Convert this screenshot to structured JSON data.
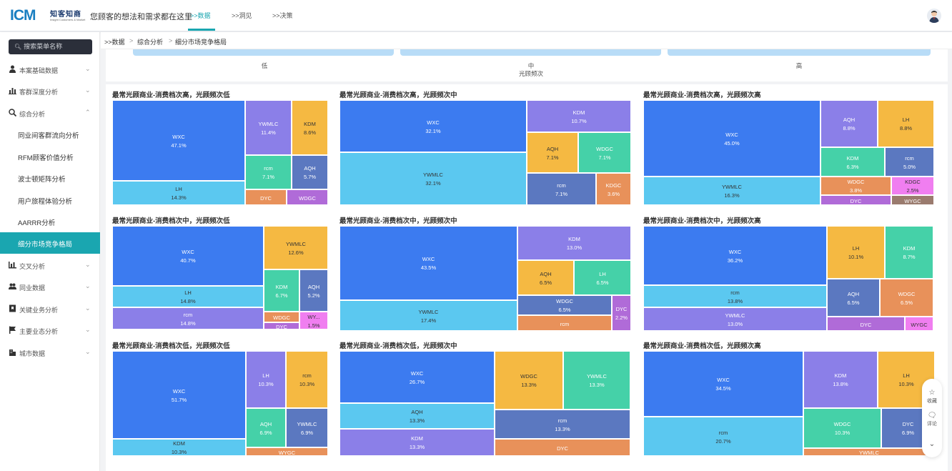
{
  "header": {
    "logo_mark": "ICM",
    "logo_cn": "知客知商",
    "logo_en": "Insight Customers & Market",
    "slogan": "您顾客的想法和需求都在这里",
    "nav": [
      {
        "label": ">>数据",
        "active": true
      },
      {
        "label": ">>洞见",
        "active": false
      },
      {
        "label": ">>决策",
        "active": false
      }
    ]
  },
  "sidebar": {
    "search_placeholder": "搜索菜单名称",
    "items": [
      {
        "label": "本案基础数据",
        "icon": "user-icon",
        "chevron": "⌄"
      },
      {
        "label": "客群深度分析",
        "icon": "bar-chart-icon",
        "chevron": "⌄"
      },
      {
        "label": "综合分析",
        "icon": "magnifier-chart-icon",
        "chevron": "⌃",
        "expanded": true
      },
      {
        "label": "交叉分析",
        "icon": "cross-analysis-icon",
        "chevron": "⌄"
      },
      {
        "label": "同业数据",
        "icon": "group-icon",
        "chevron": "⌄"
      },
      {
        "label": "关键业务分析",
        "icon": "flag-book-icon",
        "chevron": "⌄"
      },
      {
        "label": "主要业态分析",
        "icon": "flag-icon",
        "chevron": "⌄"
      },
      {
        "label": "城市数据",
        "icon": "building-icon",
        "chevron": "⌄"
      }
    ],
    "sub_items": [
      {
        "label": "同业间客群流向分析",
        "active": false
      },
      {
        "label": "RFM顾客价值分析",
        "active": false
      },
      {
        "label": "波士顿矩阵分析",
        "active": false
      },
      {
        "label": "用户旅程体验分析",
        "active": false
      },
      {
        "label": "AARRR分析",
        "active": false
      },
      {
        "label": "细分市场竞争格局",
        "active": true
      }
    ]
  },
  "breadcrumb": [
    ">>数据",
    "综合分析",
    "细分市场竞争格局"
  ],
  "top_strip": {
    "labels": [
      "低",
      "中",
      "高"
    ],
    "axis_title": "光顾频次"
  },
  "charts": [
    {
      "title": "最常光顾商业-消费档次高，光顾频次低",
      "cells": [
        {
          "name": "WXC",
          "value": "47.1%",
          "color": "#3c7bf0"
        },
        {
          "name": "LH",
          "value": "14.3%",
          "color": "#5bc8f0",
          "dark": true
        },
        {
          "name": "YWMLC",
          "value": "11.4%",
          "color": "#8b7fe8"
        },
        {
          "name": "KDM",
          "value": "8.6%",
          "color": "#f5b942",
          "dark": true
        },
        {
          "name": "rcm",
          "value": "7.1%",
          "color": "#45d1a8"
        },
        {
          "name": "AQH",
          "value": "5.7%",
          "color": "#5b78c0"
        },
        {
          "name": "DYC",
          "value": "",
          "color": "#e8915a"
        },
        {
          "name": "WDGC",
          "value": "",
          "color": "#b06bd8"
        }
      ]
    },
    {
      "title": "最常光顾商业-消费档次高，光顾频次中",
      "cells": [
        {
          "name": "WXC",
          "value": "32.1%",
          "color": "#3c7bf0"
        },
        {
          "name": "YWMLC",
          "value": "32.1%",
          "color": "#5bc8f0",
          "dark": true
        },
        {
          "name": "KDM",
          "value": "10.7%",
          "color": "#8b7fe8"
        },
        {
          "name": "AQH",
          "value": "7.1%",
          "color": "#f5b942",
          "dark": true
        },
        {
          "name": "WDGC",
          "value": "7.1%",
          "color": "#45d1a8"
        },
        {
          "name": "rcm",
          "value": "7.1%",
          "color": "#5b78c0"
        },
        {
          "name": "KDGC",
          "value": "3.6%",
          "color": "#e8915a"
        }
      ]
    },
    {
      "title": "最常光顾商业-消费档次高，光顾频次高",
      "cells": [
        {
          "name": "WXC",
          "value": "45.0%",
          "color": "#3c7bf0"
        },
        {
          "name": "YWMLC",
          "value": "16.3%",
          "color": "#5bc8f0",
          "dark": true
        },
        {
          "name": "AQH",
          "value": "8.8%",
          "color": "#8b7fe8"
        },
        {
          "name": "LH",
          "value": "8.8%",
          "color": "#f5b942",
          "dark": true
        },
        {
          "name": "KDM",
          "value": "6.3%",
          "color": "#45d1a8"
        },
        {
          "name": "rcm",
          "value": "5.0%",
          "color": "#5b78c0"
        },
        {
          "name": "WDGC",
          "value": "3.8%",
          "color": "#e8915a"
        },
        {
          "name": "KDGC",
          "value": "2.5%",
          "color": "#f07ef0",
          "dark": true
        },
        {
          "name": "DYC",
          "value": "",
          "color": "#b06bd8"
        },
        {
          "name": "WYGC",
          "value": "",
          "color": "#9a7b6e"
        }
      ]
    },
    {
      "title": "最常光顾商业-消费档次中，光顾频次低",
      "cells": [
        {
          "name": "WXC",
          "value": "40.7%",
          "color": "#3c7bf0"
        },
        {
          "name": "LH",
          "value": "14.8%",
          "color": "#5bc8f0",
          "dark": true
        },
        {
          "name": "rcm",
          "value": "14.8%",
          "color": "#8b7fe8"
        },
        {
          "name": "YWMLC",
          "value": "12.6%",
          "color": "#f5b942",
          "dark": true
        },
        {
          "name": "KDM",
          "value": "6.7%",
          "color": "#45d1a8"
        },
        {
          "name": "AQH",
          "value": "5.2%",
          "color": "#5b78c0"
        },
        {
          "name": "WDGC",
          "value": "",
          "color": "#e8915a"
        },
        {
          "name": "WY...",
          "value": "1.5%",
          "color": "#f07ef0",
          "dark": true
        },
        {
          "name": "DYC",
          "value": "",
          "color": "#b06bd8"
        }
      ]
    },
    {
      "title": "最常光顾商业-消费档次中，光顾频次中",
      "cells": [
        {
          "name": "WXC",
          "value": "43.5%",
          "color": "#3c7bf0"
        },
        {
          "name": "YWMLC",
          "value": "17.4%",
          "color": "#5bc8f0",
          "dark": true
        },
        {
          "name": "KDM",
          "value": "13.0%",
          "color": "#8b7fe8"
        },
        {
          "name": "AQH",
          "value": "6.5%",
          "color": "#f5b942",
          "dark": true
        },
        {
          "name": "LH",
          "value": "6.5%",
          "color": "#45d1a8"
        },
        {
          "name": "WDGC",
          "value": "6.5%",
          "color": "#5b78c0"
        },
        {
          "name": "DYC",
          "value": "2.2%",
          "color": "#b06bd8"
        },
        {
          "name": "rcm",
          "value": "",
          "color": "#e8915a"
        }
      ]
    },
    {
      "title": "最常光顾商业-消费档次中，光顾频次高",
      "cells": [
        {
          "name": "WXC",
          "value": "36.2%",
          "color": "#3c7bf0"
        },
        {
          "name": "rcm",
          "value": "13.8%",
          "color": "#5bc8f0",
          "dark": true
        },
        {
          "name": "YWMLC",
          "value": "13.0%",
          "color": "#8b7fe8"
        },
        {
          "name": "LH",
          "value": "10.1%",
          "color": "#f5b942",
          "dark": true
        },
        {
          "name": "KDM",
          "value": "8.7%",
          "color": "#45d1a8"
        },
        {
          "name": "AQH",
          "value": "6.5%",
          "color": "#5b78c0"
        },
        {
          "name": "WDGC",
          "value": "6.5%",
          "color": "#e8915a"
        },
        {
          "name": "DYC",
          "value": "",
          "color": "#b06bd8"
        },
        {
          "name": "WYGC",
          "value": "",
          "color": "#f07ef0",
          "dark": true
        }
      ]
    },
    {
      "title": "最常光顾商业-消费档次低，光顾频次低",
      "cells": [
        {
          "name": "WXC",
          "value": "51.7%",
          "color": "#3c7bf0"
        },
        {
          "name": "KDM",
          "value": "10.3%",
          "color": "#5bc8f0",
          "dark": true
        },
        {
          "name": "LH",
          "value": "10.3%",
          "color": "#8b7fe8"
        },
        {
          "name": "rcm",
          "value": "10.3%",
          "color": "#f5b942",
          "dark": true
        },
        {
          "name": "AQH",
          "value": "6.9%",
          "color": "#45d1a8"
        },
        {
          "name": "YWMLC",
          "value": "6.9%",
          "color": "#5b78c0"
        },
        {
          "name": "WYGC",
          "value": "",
          "color": "#e8915a"
        }
      ]
    },
    {
      "title": "最常光顾商业-消费档次低，光顾频次中",
      "cells": [
        {
          "name": "WXC",
          "value": "26.7%",
          "color": "#3c7bf0"
        },
        {
          "name": "AQH",
          "value": "13.3%",
          "color": "#5bc8f0",
          "dark": true
        },
        {
          "name": "KDM",
          "value": "13.3%",
          "color": "#8b7fe8"
        },
        {
          "name": "WDGC",
          "value": "13.3%",
          "color": "#f5b942",
          "dark": true
        },
        {
          "name": "YWMLC",
          "value": "13.3%",
          "color": "#45d1a8"
        },
        {
          "name": "rcm",
          "value": "13.3%",
          "color": "#5b78c0"
        },
        {
          "name": "DYC",
          "value": "",
          "color": "#e8915a"
        }
      ]
    },
    {
      "title": "最常光顾商业-消费档次低，光顾频次高",
      "cells": [
        {
          "name": "WXC",
          "value": "34.5%",
          "color": "#3c7bf0"
        },
        {
          "name": "rcm",
          "value": "20.7%",
          "color": "#5bc8f0",
          "dark": true
        },
        {
          "name": "KDM",
          "value": "13.8%",
          "color": "#8b7fe8"
        },
        {
          "name": "LH",
          "value": "10.3%",
          "color": "#f5b942",
          "dark": true
        },
        {
          "name": "WDGC",
          "value": "10.3%",
          "color": "#45d1a8"
        },
        {
          "name": "DYC",
          "value": "6.9%",
          "color": "#5b78c0"
        },
        {
          "name": "YWMLC",
          "value": "",
          "color": "#e8915a"
        }
      ]
    }
  ],
  "float_bar": {
    "items": [
      {
        "label": "收藏",
        "icon": "star-icon"
      },
      {
        "label": "评论",
        "icon": "comment-icon"
      },
      {
        "label": "",
        "icon": "chevron-down-icon"
      }
    ]
  }
}
